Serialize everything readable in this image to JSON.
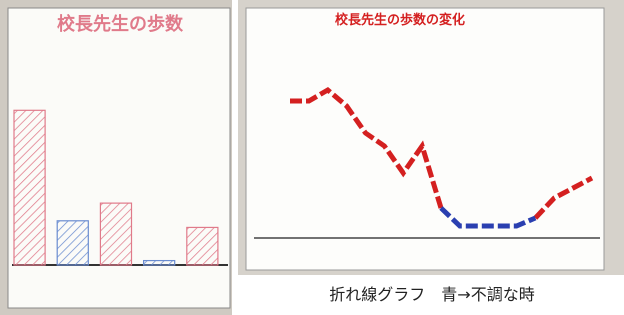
{
  "chart_data": [
    {
      "type": "bar",
      "title": "校長先生の歩数",
      "categories": [
        null,
        null,
        null,
        null,
        null
      ],
      "values": [
        70,
        20,
        28,
        2,
        17
      ],
      "colors": [
        "#e07a8a",
        "#6a8cd0",
        "#e07a8a",
        "#6a8cd0",
        "#e07a8a"
      ],
      "ylim": [
        0,
        100
      ]
    },
    {
      "type": "line",
      "title": "校長先生の歩数の変化",
      "categories": [
        null,
        null,
        null,
        null,
        null,
        null,
        null,
        null,
        null,
        null,
        null,
        null,
        null,
        null,
        null,
        null,
        null
      ],
      "series": [
        {
          "color": "#d42020",
          "values": [
            68.5,
            68.5,
            74,
            66,
            52.5,
            46,
            32.5,
            46,
            15,
            null,
            null,
            null,
            null,
            10,
            20,
            25,
            30
          ]
        },
        {
          "color": "#2a3fb0",
          "values": [
            null,
            null,
            null,
            null,
            null,
            null,
            null,
            null,
            15,
            6,
            6,
            6,
            6,
            10,
            null,
            null,
            null
          ]
        }
      ],
      "ylim": [
        0,
        100
      ]
    }
  ],
  "caption": "折れ線グラフ　青→不調な時"
}
